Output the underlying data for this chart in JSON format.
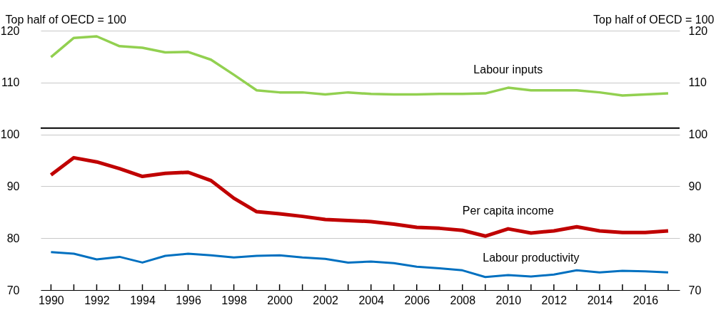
{
  "chart_data": {
    "type": "line",
    "ylabel": "Top half of OECD = 100",
    "y2label": "Top half of OECD = 100",
    "x": [
      1990,
      1991,
      1992,
      1993,
      1994,
      1995,
      1996,
      1997,
      1998,
      1999,
      2000,
      2001,
      2002,
      2003,
      2004,
      2005,
      2006,
      2007,
      2008,
      2009,
      2010,
      2011,
      2012,
      2013,
      2014,
      2015,
      2016,
      2017
    ],
    "series": [
      {
        "name": "Labour inputs",
        "color": "#92d050",
        "values": [
          114.9,
          118.6,
          118.9,
          117.0,
          116.7,
          115.8,
          115.9,
          114.4,
          111.5,
          108.5,
          108.1,
          108.1,
          107.7,
          108.1,
          107.8,
          107.7,
          107.7,
          107.8,
          107.8,
          107.9,
          109.0,
          108.5,
          108.5,
          108.5,
          108.1,
          107.5,
          107.7,
          107.9
        ]
      },
      {
        "name": "Per capita income",
        "color": "#c00000",
        "values": [
          92.2,
          95.5,
          94.7,
          93.4,
          91.9,
          92.5,
          92.7,
          91.1,
          87.7,
          85.1,
          84.7,
          84.2,
          83.6,
          83.4,
          83.2,
          82.7,
          82.1,
          81.9,
          81.5,
          80.4,
          81.8,
          81.0,
          81.4,
          82.2,
          81.4,
          81.1,
          81.1,
          81.4
        ]
      },
      {
        "name": "Labour productivity",
        "color": "#0070c0",
        "values": [
          77.3,
          77.0,
          75.9,
          76.4,
          75.3,
          76.6,
          77.0,
          76.7,
          76.3,
          76.6,
          76.7,
          76.3,
          76.0,
          75.3,
          75.5,
          75.2,
          74.5,
          74.2,
          73.8,
          72.5,
          72.9,
          72.6,
          73.0,
          73.8,
          73.4,
          73.7,
          73.6,
          73.4
        ]
      }
    ],
    "xlim": [
      1989.55,
      2017.5
    ],
    "xticks": [
      1990,
      {
        "value": 1991,
        "label": null
      },
      1992,
      {
        "value": 1993,
        "label": null
      },
      1994,
      {
        "value": 1995,
        "label": null
      },
      1996,
      {
        "value": 1997,
        "label": null
      },
      1998,
      {
        "value": 1999,
        "label": null
      },
      2000,
      {
        "value": 2001,
        "label": null
      },
      2002,
      {
        "value": 2003,
        "label": null
      },
      2004,
      {
        "value": 2005,
        "label": null
      },
      2006,
      {
        "value": 2007,
        "label": null
      },
      2008,
      {
        "value": 2009,
        "label": null
      },
      2010,
      {
        "value": 2011,
        "label": null
      },
      2012,
      {
        "value": 2013,
        "label": null
      },
      2014,
      {
        "value": 2015,
        "label": null
      },
      2016,
      {
        "value": 2017,
        "label": null
      }
    ],
    "ylim": [
      70,
      120
    ],
    "yticks": [
      70,
      80,
      90,
      100,
      110,
      120
    ],
    "y2lim": [
      70,
      120
    ],
    "y2ticks": [
      70,
      80,
      90,
      100,
      110,
      120
    ],
    "ref_lines": [
      {
        "axis": "y",
        "value": 101.2,
        "label": null,
        "color": "#000000"
      }
    ],
    "grid": "y",
    "marker": "none",
    "line_style": "solid"
  }
}
